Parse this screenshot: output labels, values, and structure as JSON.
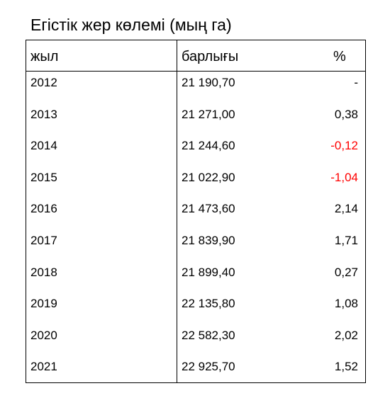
{
  "chart_data": {
    "type": "table",
    "title": "Егістік жер көлемі (мың га)",
    "columns": [
      "жыл",
      "барлығы",
      "%"
    ],
    "rows": [
      {
        "year": "2012",
        "total": "21 190,70",
        "pct": "-"
      },
      {
        "year": "2013",
        "total": "21 271,00",
        "pct": "0,38"
      },
      {
        "year": "2014",
        "total": "21 244,60",
        "pct": "-0,12"
      },
      {
        "year": "2015",
        "total": "21 022,90",
        "pct": "-1,04"
      },
      {
        "year": "2016",
        "total": "21 473,60",
        "pct": "2,14"
      },
      {
        "year": "2017",
        "total": "21 839,90",
        "pct": "1,71"
      },
      {
        "year": "2018",
        "total": "21 899,40",
        "pct": "0,27"
      },
      {
        "year": "2019",
        "total": "22 135,80",
        "pct": "1,08"
      },
      {
        "year": "2020",
        "total": "22 582,30",
        "pct": "2,02"
      },
      {
        "year": "2021",
        "total": "22 925,70",
        "pct": "1,52"
      }
    ],
    "negative_color": "#ff0000",
    "text_color": "#000000"
  }
}
